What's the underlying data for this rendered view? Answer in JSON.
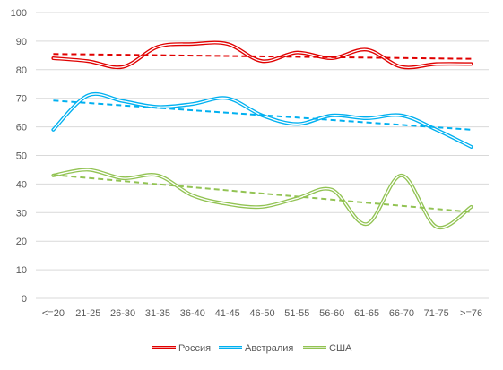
{
  "chart_data": {
    "type": "line",
    "categories": [
      "<=20",
      "21-25",
      "26-30",
      "31-35",
      "36-40",
      "41-45",
      "46-50",
      "51-55",
      "56-60",
      "61-65",
      "66-70",
      "71-75",
      ">=76"
    ],
    "ylim": [
      0,
      100
    ],
    "yticks": [
      0,
      10,
      20,
      30,
      40,
      50,
      60,
      70,
      80,
      90,
      100
    ],
    "grid": true,
    "legend_position": "bottom",
    "series": [
      {
        "name": "Россия",
        "color": "#e00000",
        "values": [
          84,
          83,
          81,
          88,
          89,
          89,
          83,
          86,
          84,
          87,
          81,
          82,
          82
        ],
        "trend": [
          85.5,
          83.8
        ]
      },
      {
        "name": "Австралия",
        "color": "#00b0f0",
        "values": [
          59,
          71,
          69,
          67,
          68,
          70,
          64,
          61,
          64,
          63,
          64,
          59,
          53
        ],
        "trend": [
          69.2,
          59.0
        ]
      },
      {
        "name": "США",
        "color": "#92c353",
        "values": [
          43,
          45,
          42,
          43,
          36,
          33,
          32,
          35,
          38,
          26,
          43,
          25,
          32
        ],
        "trend": [
          43.2,
          30.2
        ]
      }
    ]
  }
}
